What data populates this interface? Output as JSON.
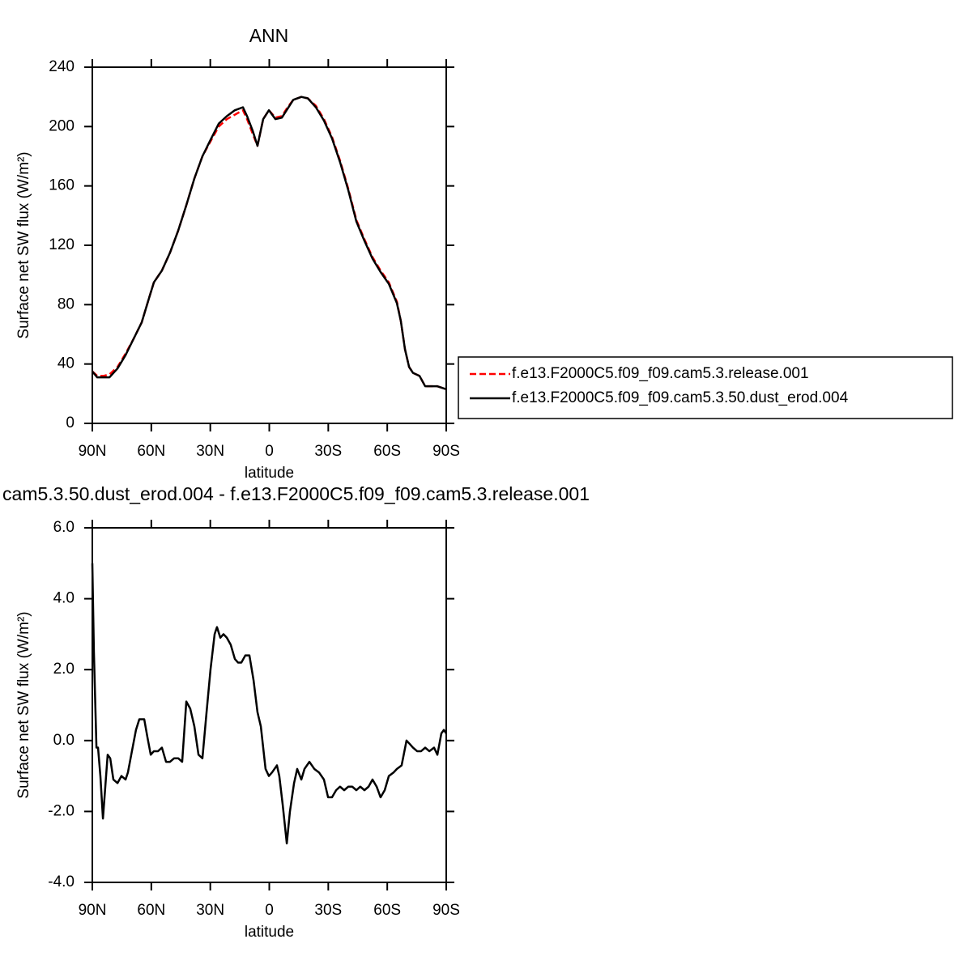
{
  "chart_data": [
    {
      "type": "line",
      "title": "ANN",
      "x_label": "latitude",
      "y_label": "Surface net SW flux (W/m²)",
      "xlim": [
        90,
        -90
      ],
      "xticks": [
        {
          "value": 90,
          "label": "90N"
        },
        {
          "value": 60,
          "label": "60N"
        },
        {
          "value": 30,
          "label": "30N"
        },
        0,
        {
          "value": -30,
          "label": "30S"
        },
        {
          "value": -60,
          "label": "60S"
        },
        {
          "value": -90,
          "label": "90S"
        }
      ],
      "ylim": [
        0,
        240
      ],
      "yticks": [
        0,
        40,
        80,
        120,
        160,
        200,
        240
      ],
      "legend": "right",
      "x": [
        90,
        87.5,
        84.2,
        81.3,
        77.2,
        73.1,
        69.0,
        64.9,
        60.8,
        58.7,
        54.6,
        50.5,
        46.3,
        42.2,
        38.1,
        34.0,
        29.9,
        25.7,
        21.6,
        17.5,
        13.4,
        11.3,
        8.4,
        6.0,
        3.1,
        0.2,
        -3.1,
        -6.4,
        -9.3,
        -12.2,
        -16.3,
        -19.6,
        -23.7,
        -27.8,
        -31.9,
        -36.0,
        -40.2,
        -44.3,
        -48.4,
        -52.5,
        -56.6,
        -60.8,
        -64.9,
        -66.9,
        -69.0,
        -71.1,
        -73.1,
        -76.4,
        -79.3,
        -85.5,
        -90
      ],
      "series": [
        {
          "name": "f.e13.F2000C5.f09_f09.cam5.3.release.001",
          "color": "#ff0000",
          "linestyle": "dashed",
          "values": [
            35,
            32,
            32,
            33,
            38,
            47,
            57,
            68,
            86,
            95,
            103,
            115,
            130,
            147,
            165,
            180,
            190,
            200,
            205,
            208,
            211,
            205,
            195,
            187,
            205,
            211,
            206,
            207,
            213,
            218,
            220,
            219,
            214,
            205,
            193,
            177,
            158,
            137,
            124,
            112,
            103,
            95,
            82,
            69,
            50,
            38,
            34,
            32,
            25,
            25,
            23
          ]
        },
        {
          "name": "f.e13.F2000C5.f09_f09.cam5.3.50.dust_erod.004",
          "color": "#000000",
          "linestyle": "solid",
          "values": [
            35,
            31,
            31,
            31,
            37,
            46,
            57,
            68,
            86,
            95,
            103,
            115,
            130,
            147,
            165,
            180,
            191,
            202,
            207,
            211,
            213,
            207,
            197,
            187,
            205,
            211,
            205,
            206,
            212,
            218,
            220,
            219,
            213,
            204,
            192,
            176,
            157,
            136,
            123,
            111,
            102,
            94,
            81,
            69,
            50,
            38,
            34,
            32,
            25,
            25,
            23
          ]
        }
      ]
    },
    {
      "type": "line",
      "title": "cam5.3.50.dust_erod.004 - f.e13.F2000C5.f09_f09.cam5.3.release.001",
      "x_label": "latitude",
      "y_label": "Surface net SW flux (W/m²)",
      "xlim": [
        90,
        -90
      ],
      "xticks": [
        {
          "value": 90,
          "label": "90N"
        },
        {
          "value": 60,
          "label": "60N"
        },
        {
          "value": 30,
          "label": "30N"
        },
        0,
        {
          "value": -30,
          "label": "30S"
        },
        {
          "value": -60,
          "label": "60S"
        },
        {
          "value": -90,
          "label": "90S"
        }
      ],
      "ylim": [
        -4,
        6
      ],
      "yticks": [
        {
          "value": -4,
          "label": "-4.0"
        },
        {
          "value": -2,
          "label": "-2.0"
        },
        {
          "value": 0,
          "label": "0.0"
        },
        {
          "value": 2,
          "label": "2.0"
        },
        {
          "value": 4,
          "label": "4.0"
        },
        {
          "value": 6,
          "label": "6.0"
        }
      ],
      "x": [
        90,
        89.2,
        87.9,
        87.1,
        85.9,
        84.6,
        83.4,
        82.2,
        80.9,
        79.3,
        77.2,
        75.2,
        73.1,
        71.9,
        70.2,
        67.8,
        66.1,
        63.6,
        62.0,
        60.3,
        58.7,
        56.6,
        54.6,
        52.5,
        50.5,
        48.4,
        46.3,
        44.3,
        42.2,
        40.2,
        38.1,
        36.0,
        34.0,
        31.9,
        29.9,
        27.8,
        26.6,
        24.9,
        23.3,
        21.6,
        19.6,
        17.5,
        15.9,
        14.2,
        12.2,
        10.1,
        8.0,
        6.0,
        4.3,
        1.9,
        0.2,
        -1.4,
        -3.9,
        -5.1,
        -6.8,
        -8.9,
        -10.5,
        -12.6,
        -14.2,
        -16.3,
        -17.9,
        -20.4,
        -22.9,
        -25.3,
        -27.8,
        -29.9,
        -31.9,
        -34.0,
        -36.0,
        -38.1,
        -40.2,
        -42.2,
        -44.3,
        -46.3,
        -48.4,
        -50.5,
        -52.5,
        -54.6,
        -56.6,
        -58.7,
        -60.8,
        -63.2,
        -64.9,
        -67.3,
        -69.8,
        -71.5,
        -73.1,
        -75.2,
        -77.2,
        -79.3,
        -81.4,
        -83.8,
        -85.5,
        -87.5,
        -88.8,
        -90
      ],
      "series": [
        {
          "color": "#000000",
          "linestyle": "solid",
          "values": [
            5.0,
            2.5,
            -0.2,
            -0.2,
            -1.0,
            -2.2,
            -1.3,
            -0.4,
            -0.5,
            -1.1,
            -1.2,
            -1.0,
            -1.1,
            -0.9,
            -0.4,
            0.3,
            0.6,
            0.6,
            0.1,
            -0.4,
            -0.3,
            -0.3,
            -0.2,
            -0.6,
            -0.6,
            -0.5,
            -0.5,
            -0.6,
            1.1,
            0.9,
            0.4,
            -0.4,
            -0.5,
            0.8,
            2.0,
            3.0,
            3.2,
            2.9,
            3.0,
            2.9,
            2.7,
            2.3,
            2.2,
            2.2,
            2.4,
            2.4,
            1.7,
            0.8,
            0.4,
            -0.8,
            -1.0,
            -0.9,
            -0.7,
            -1.0,
            -1.8,
            -2.9,
            -2.0,
            -1.2,
            -0.8,
            -1.1,
            -0.8,
            -0.6,
            -0.8,
            -0.9,
            -1.1,
            -1.6,
            -1.6,
            -1.4,
            -1.3,
            -1.4,
            -1.3,
            -1.3,
            -1.4,
            -1.3,
            -1.4,
            -1.3,
            -1.1,
            -1.3,
            -1.6,
            -1.4,
            -1.0,
            -0.9,
            -0.8,
            -0.7,
            0.0,
            -0.1,
            -0.2,
            -0.3,
            -0.3,
            -0.2,
            -0.3,
            -0.2,
            -0.4,
            0.2,
            0.3,
            0.2
          ]
        }
      ]
    }
  ]
}
